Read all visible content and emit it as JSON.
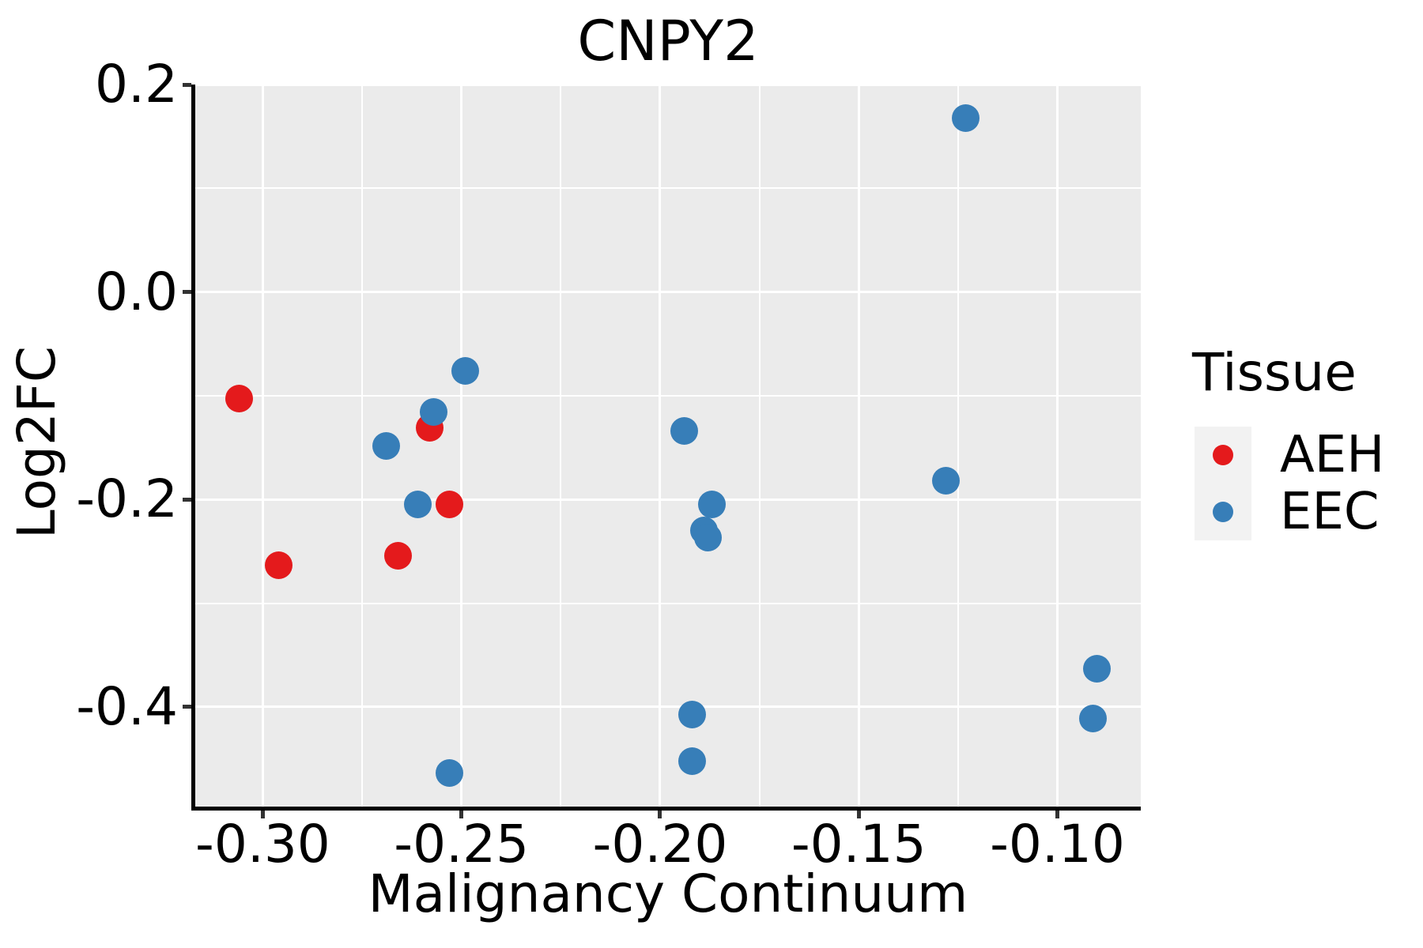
{
  "title": "CNPY2",
  "axes": {
    "x": {
      "label": "Malignancy Continuum"
    },
    "y": {
      "label": "Log2FC"
    }
  },
  "legend": {
    "title": "Tissue",
    "entries": [
      {
        "label": "AEH",
        "color": "#E41A1C"
      },
      {
        "label": "EEC",
        "color": "#377EB8"
      }
    ]
  },
  "style": {
    "panel_bg": "#EBEBEB",
    "grid_color": "#FFFFFF",
    "axis_color": "#000000",
    "tick_color": "#333333",
    "text_color": "#000000",
    "legend_key_bg": "#F2F2F2",
    "point_diameter": 35,
    "legend_point_diameter": 26
  },
  "chart_data": {
    "type": "scatter",
    "title": "CNPY2",
    "xlabel": "Malignancy Continuum",
    "ylabel": "Log2FC",
    "xlim": [
      -0.317,
      -0.079
    ],
    "ylim": [
      -0.496,
      0.2
    ],
    "grid": true,
    "legend_title": "Tissue",
    "legend_position": "right",
    "x_ticks": [
      {
        "value": -0.3,
        "label": "-0.30"
      },
      {
        "value": -0.25,
        "label": "-0.25"
      },
      {
        "value": -0.2,
        "label": "-0.20"
      },
      {
        "value": -0.15,
        "label": "-0.15"
      },
      {
        "value": -0.1,
        "label": "-0.10"
      }
    ],
    "y_ticks": [
      {
        "value": 0.2,
        "label": "0.2"
      },
      {
        "value": 0.0,
        "label": "0.0"
      },
      {
        "value": -0.2,
        "label": "-0.2"
      },
      {
        "value": -0.4,
        "label": "-0.4"
      }
    ],
    "x_minor_gridlines": [
      -0.275,
      -0.225,
      -0.175,
      -0.125
    ],
    "y_minor_gridlines": [
      0.1,
      -0.1,
      -0.3
    ],
    "series": [
      {
        "name": "AEH",
        "color": "#E41A1C",
        "points": [
          [
            -0.306,
            -0.103
          ],
          [
            -0.296,
            -0.263
          ],
          [
            -0.266,
            -0.254
          ],
          [
            -0.258,
            -0.131
          ],
          [
            -0.253,
            -0.205
          ]
        ]
      },
      {
        "name": "EEC",
        "color": "#377EB8",
        "points": [
          [
            -0.249,
            -0.076
          ],
          [
            -0.257,
            -0.116
          ],
          [
            -0.269,
            -0.148
          ],
          [
            -0.261,
            -0.205
          ],
          [
            -0.253,
            -0.464
          ],
          [
            -0.194,
            -0.134
          ],
          [
            -0.187,
            -0.205
          ],
          [
            -0.189,
            -0.23
          ],
          [
            -0.188,
            -0.237
          ],
          [
            -0.192,
            -0.407
          ],
          [
            -0.192,
            -0.452
          ],
          [
            -0.123,
            0.168
          ],
          [
            -0.128,
            -0.182
          ],
          [
            -0.09,
            -0.363
          ],
          [
            -0.091,
            -0.411
          ]
        ]
      }
    ]
  }
}
